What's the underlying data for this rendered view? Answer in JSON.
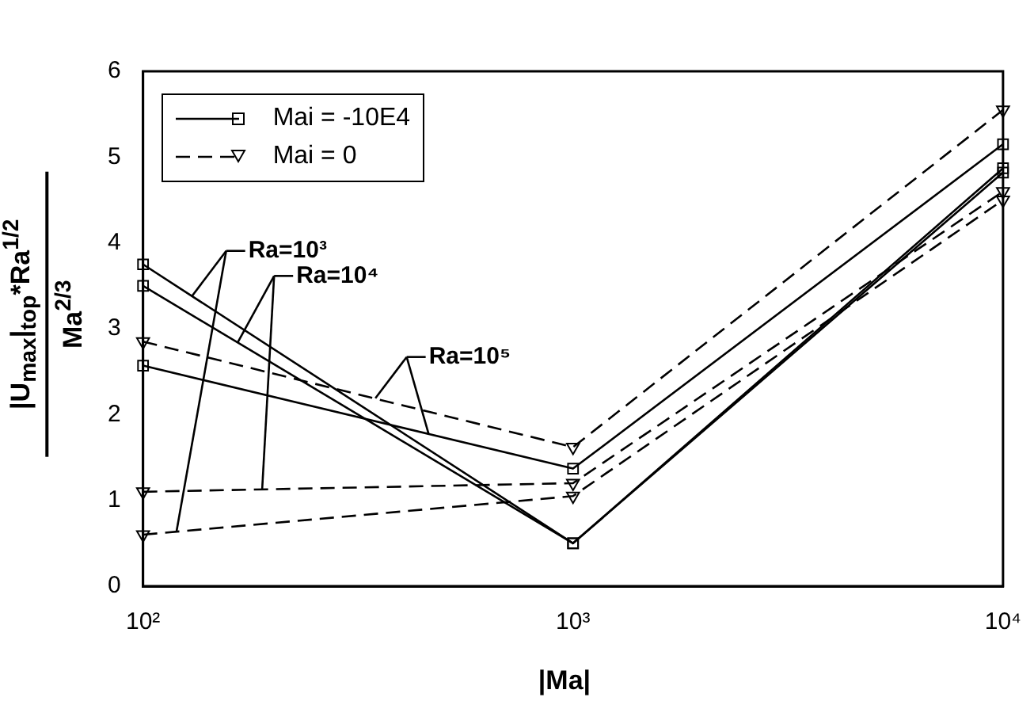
{
  "chart_data": {
    "type": "line",
    "xlabel": "|Ma|",
    "ylabel": "|U$_{max}$|$_{top}$*Ra$^{1/2}$\nMa$^{2/3}$",
    "x": [
      100,
      1000,
      10000
    ],
    "series": [
      {
        "name": "Mai = -10E4",
        "color": "#000000",
        "values": [
          3.75,
          0.5,
          4.87
        ],
        "marker": "square",
        "line_style": "solid"
      },
      {
        "color": "#000000",
        "values": [
          3.5,
          0.5,
          4.82
        ],
        "marker": "square",
        "line_style": "solid"
      },
      {
        "color": "#000000",
        "values": [
          2.57,
          1.37,
          5.15
        ],
        "marker": "square",
        "line_style": "solid"
      },
      {
        "name": "Mai = 0",
        "color": "#000000",
        "values": [
          0.6,
          1.05,
          4.5
        ],
        "marker": "triangle",
        "line_style": "dashed"
      },
      {
        "color": "#000000",
        "values": [
          1.1,
          1.2,
          4.6
        ],
        "marker": "triangle",
        "line_style": "dashed"
      },
      {
        "color": "#000000",
        "values": [
          2.85,
          1.62,
          5.55
        ],
        "marker": "triangle",
        "line_style": "dashed"
      }
    ],
    "log": "x",
    "xlim": [
      100,
      10000
    ],
    "xticks": [
      {
        "value": 100,
        "label": "10²"
      },
      {
        "value": 1000,
        "label": "10³"
      },
      {
        "value": 10000,
        "label": "10⁴"
      }
    ],
    "ylim": [
      0,
      6
    ],
    "yticks": [
      0,
      1,
      2,
      3,
      4,
      5,
      6
    ],
    "grid": false,
    "legend": "top left",
    "annotations": [
      {
        "text": "Ra=10³",
        "x": 130,
        "y": 3.38
      },
      {
        "text": "Ra=10⁴",
        "x": 166,
        "y": 2.84
      },
      {
        "text": "Ra=10⁵",
        "x": 347,
        "y": 2.19
      }
    ]
  }
}
